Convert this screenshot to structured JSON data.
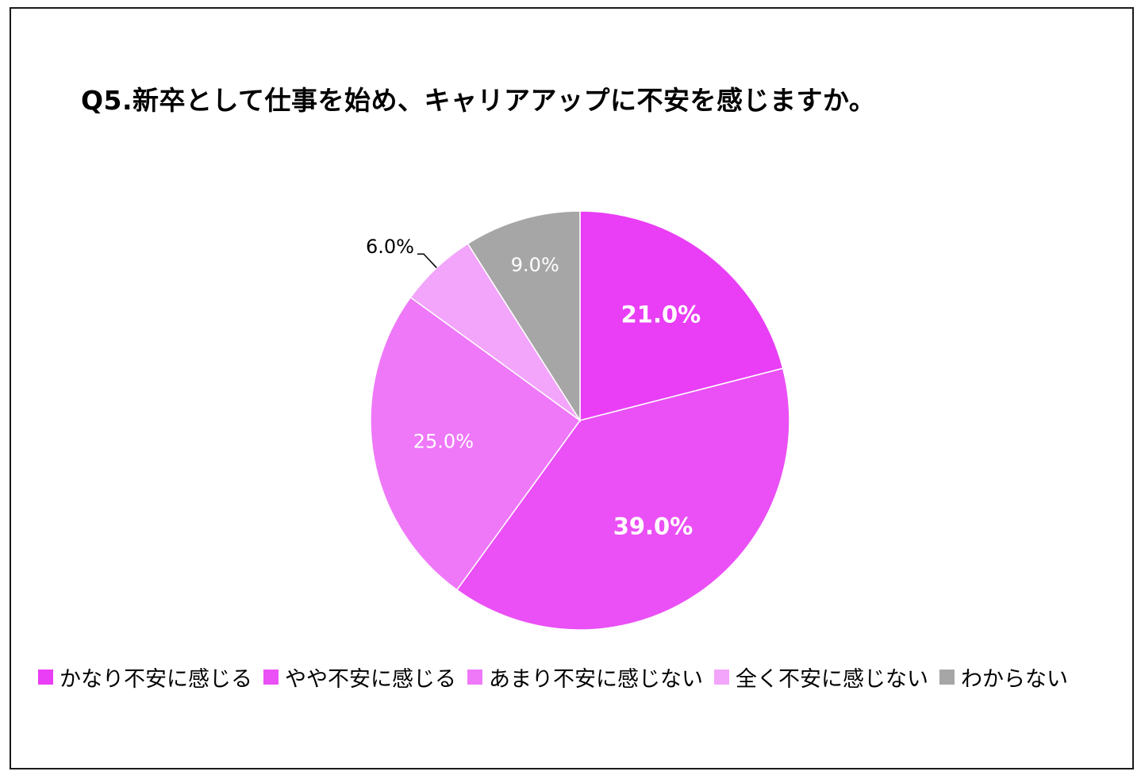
{
  "chart_data": {
    "type": "pie",
    "title": "Q5.新卒として仕事を始め、キャリアアップに不安を感じますか。",
    "unit": "%",
    "legend_position": "bottom",
    "slices": [
      {
        "label": "かなり不安に感じる",
        "value": 21.0,
        "display": "21.0%",
        "color": "#e93ef5",
        "label_color": "#ffffff",
        "label_bold": true
      },
      {
        "label": "やや不安に感じる",
        "value": 39.0,
        "display": "39.0%",
        "color": "#ea50f5",
        "label_color": "#ffffff",
        "label_bold": true
      },
      {
        "label": "あまり不安に感じない",
        "value": 25.0,
        "display": "25.0%",
        "color": "#ee78f8",
        "label_color": "#ffffff",
        "label_bold": false
      },
      {
        "label": "全く不安に感じない",
        "value": 6.0,
        "display": "6.0%",
        "color": "#f2a5fa",
        "label_color": "#000000",
        "label_bold": false
      },
      {
        "label": "わからない",
        "value": 9.0,
        "display": "9.0%",
        "color": "#a6a6a6",
        "label_color": "#ffffff",
        "label_bold": false
      }
    ]
  }
}
